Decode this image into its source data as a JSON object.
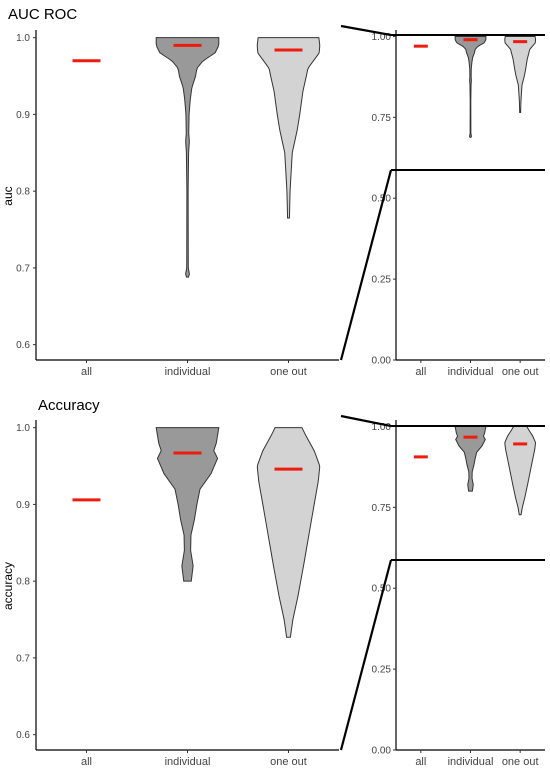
{
  "chart_data": [
    {
      "type": "violin",
      "title": "AUC ROC",
      "ylabel": "auc",
      "categories": [
        "all",
        "individual",
        "one out"
      ],
      "colors": {
        "individual": "#999999",
        "one out": "#d3d3d3",
        "median": "#ee1c0e"
      },
      "main_ylim": [
        0.58,
        1.01
      ],
      "main_yticks": [
        "0.6",
        "0.7",
        "0.8",
        "0.9",
        "1.0"
      ],
      "inset_ylim": [
        0,
        1.02
      ],
      "inset_yticks": [
        "0.00",
        "0.25",
        "0.50",
        "0.75",
        "1.00"
      ],
      "medians": [
        0.97,
        0.99,
        0.984
      ],
      "series": [
        {
          "category": "individual",
          "min": 0.688,
          "max": 1.0,
          "density": [
            [
              0.688,
              0.03
            ],
            [
              0.69,
              0.07
            ],
            [
              0.7,
              0.025
            ],
            [
              0.8,
              0.02
            ],
            [
              0.85,
              0.035
            ],
            [
              0.865,
              0.06
            ],
            [
              0.875,
              0.04
            ],
            [
              0.9,
              0.05
            ],
            [
              0.92,
              0.09
            ],
            [
              0.935,
              0.14
            ],
            [
              0.95,
              0.26
            ],
            [
              0.96,
              0.3
            ],
            [
              0.97,
              0.5
            ],
            [
              0.98,
              0.88
            ],
            [
              0.99,
              1.0
            ],
            [
              1.0,
              1.0
            ]
          ]
        },
        {
          "category": "one out",
          "min": 0.765,
          "max": 1.0,
          "density": [
            [
              0.765,
              0.03
            ],
            [
              0.8,
              0.05
            ],
            [
              0.85,
              0.12
            ],
            [
              0.88,
              0.28
            ],
            [
              0.9,
              0.36
            ],
            [
              0.93,
              0.46
            ],
            [
              0.95,
              0.57
            ],
            [
              0.96,
              0.62
            ],
            [
              0.97,
              0.8
            ],
            [
              0.98,
              0.98
            ],
            [
              0.99,
              1.0
            ],
            [
              1.0,
              0.97
            ]
          ]
        }
      ]
    },
    {
      "type": "violin",
      "title": "Accuracy",
      "ylabel": "accuracy",
      "categories": [
        "all",
        "individual",
        "one out"
      ],
      "colors": {
        "individual": "#999999",
        "one out": "#d3d3d3",
        "median": "#ee1c0e"
      },
      "main_ylim": [
        0.58,
        1.01
      ],
      "main_yticks": [
        "0.6",
        "0.7",
        "0.8",
        "0.9",
        "1.0"
      ],
      "inset_ylim": [
        0,
        1.02
      ],
      "inset_yticks": [
        "0.00",
        "0.25",
        "0.50",
        "0.75",
        "1.00"
      ],
      "medians": [
        0.906,
        0.967,
        0.946
      ],
      "series": [
        {
          "category": "individual",
          "min": 0.8,
          "max": 1.0,
          "density": [
            [
              0.8,
              0.12
            ],
            [
              0.82,
              0.18
            ],
            [
              0.84,
              0.1
            ],
            [
              0.86,
              0.11
            ],
            [
              0.88,
              0.22
            ],
            [
              0.9,
              0.3
            ],
            [
              0.92,
              0.4
            ],
            [
              0.94,
              0.75
            ],
            [
              0.96,
              0.96
            ],
            [
              0.97,
              0.84
            ],
            [
              0.98,
              0.92
            ],
            [
              1.0,
              1.0
            ]
          ]
        },
        {
          "category": "one out",
          "min": 0.727,
          "max": 1.0,
          "density": [
            [
              0.727,
              0.06
            ],
            [
              0.75,
              0.14
            ],
            [
              0.78,
              0.3
            ],
            [
              0.82,
              0.48
            ],
            [
              0.86,
              0.65
            ],
            [
              0.9,
              0.82
            ],
            [
              0.93,
              0.95
            ],
            [
              0.95,
              1.0
            ],
            [
              0.97,
              0.82
            ],
            [
              0.99,
              0.55
            ],
            [
              1.0,
              0.43
            ]
          ]
        }
      ]
    }
  ]
}
